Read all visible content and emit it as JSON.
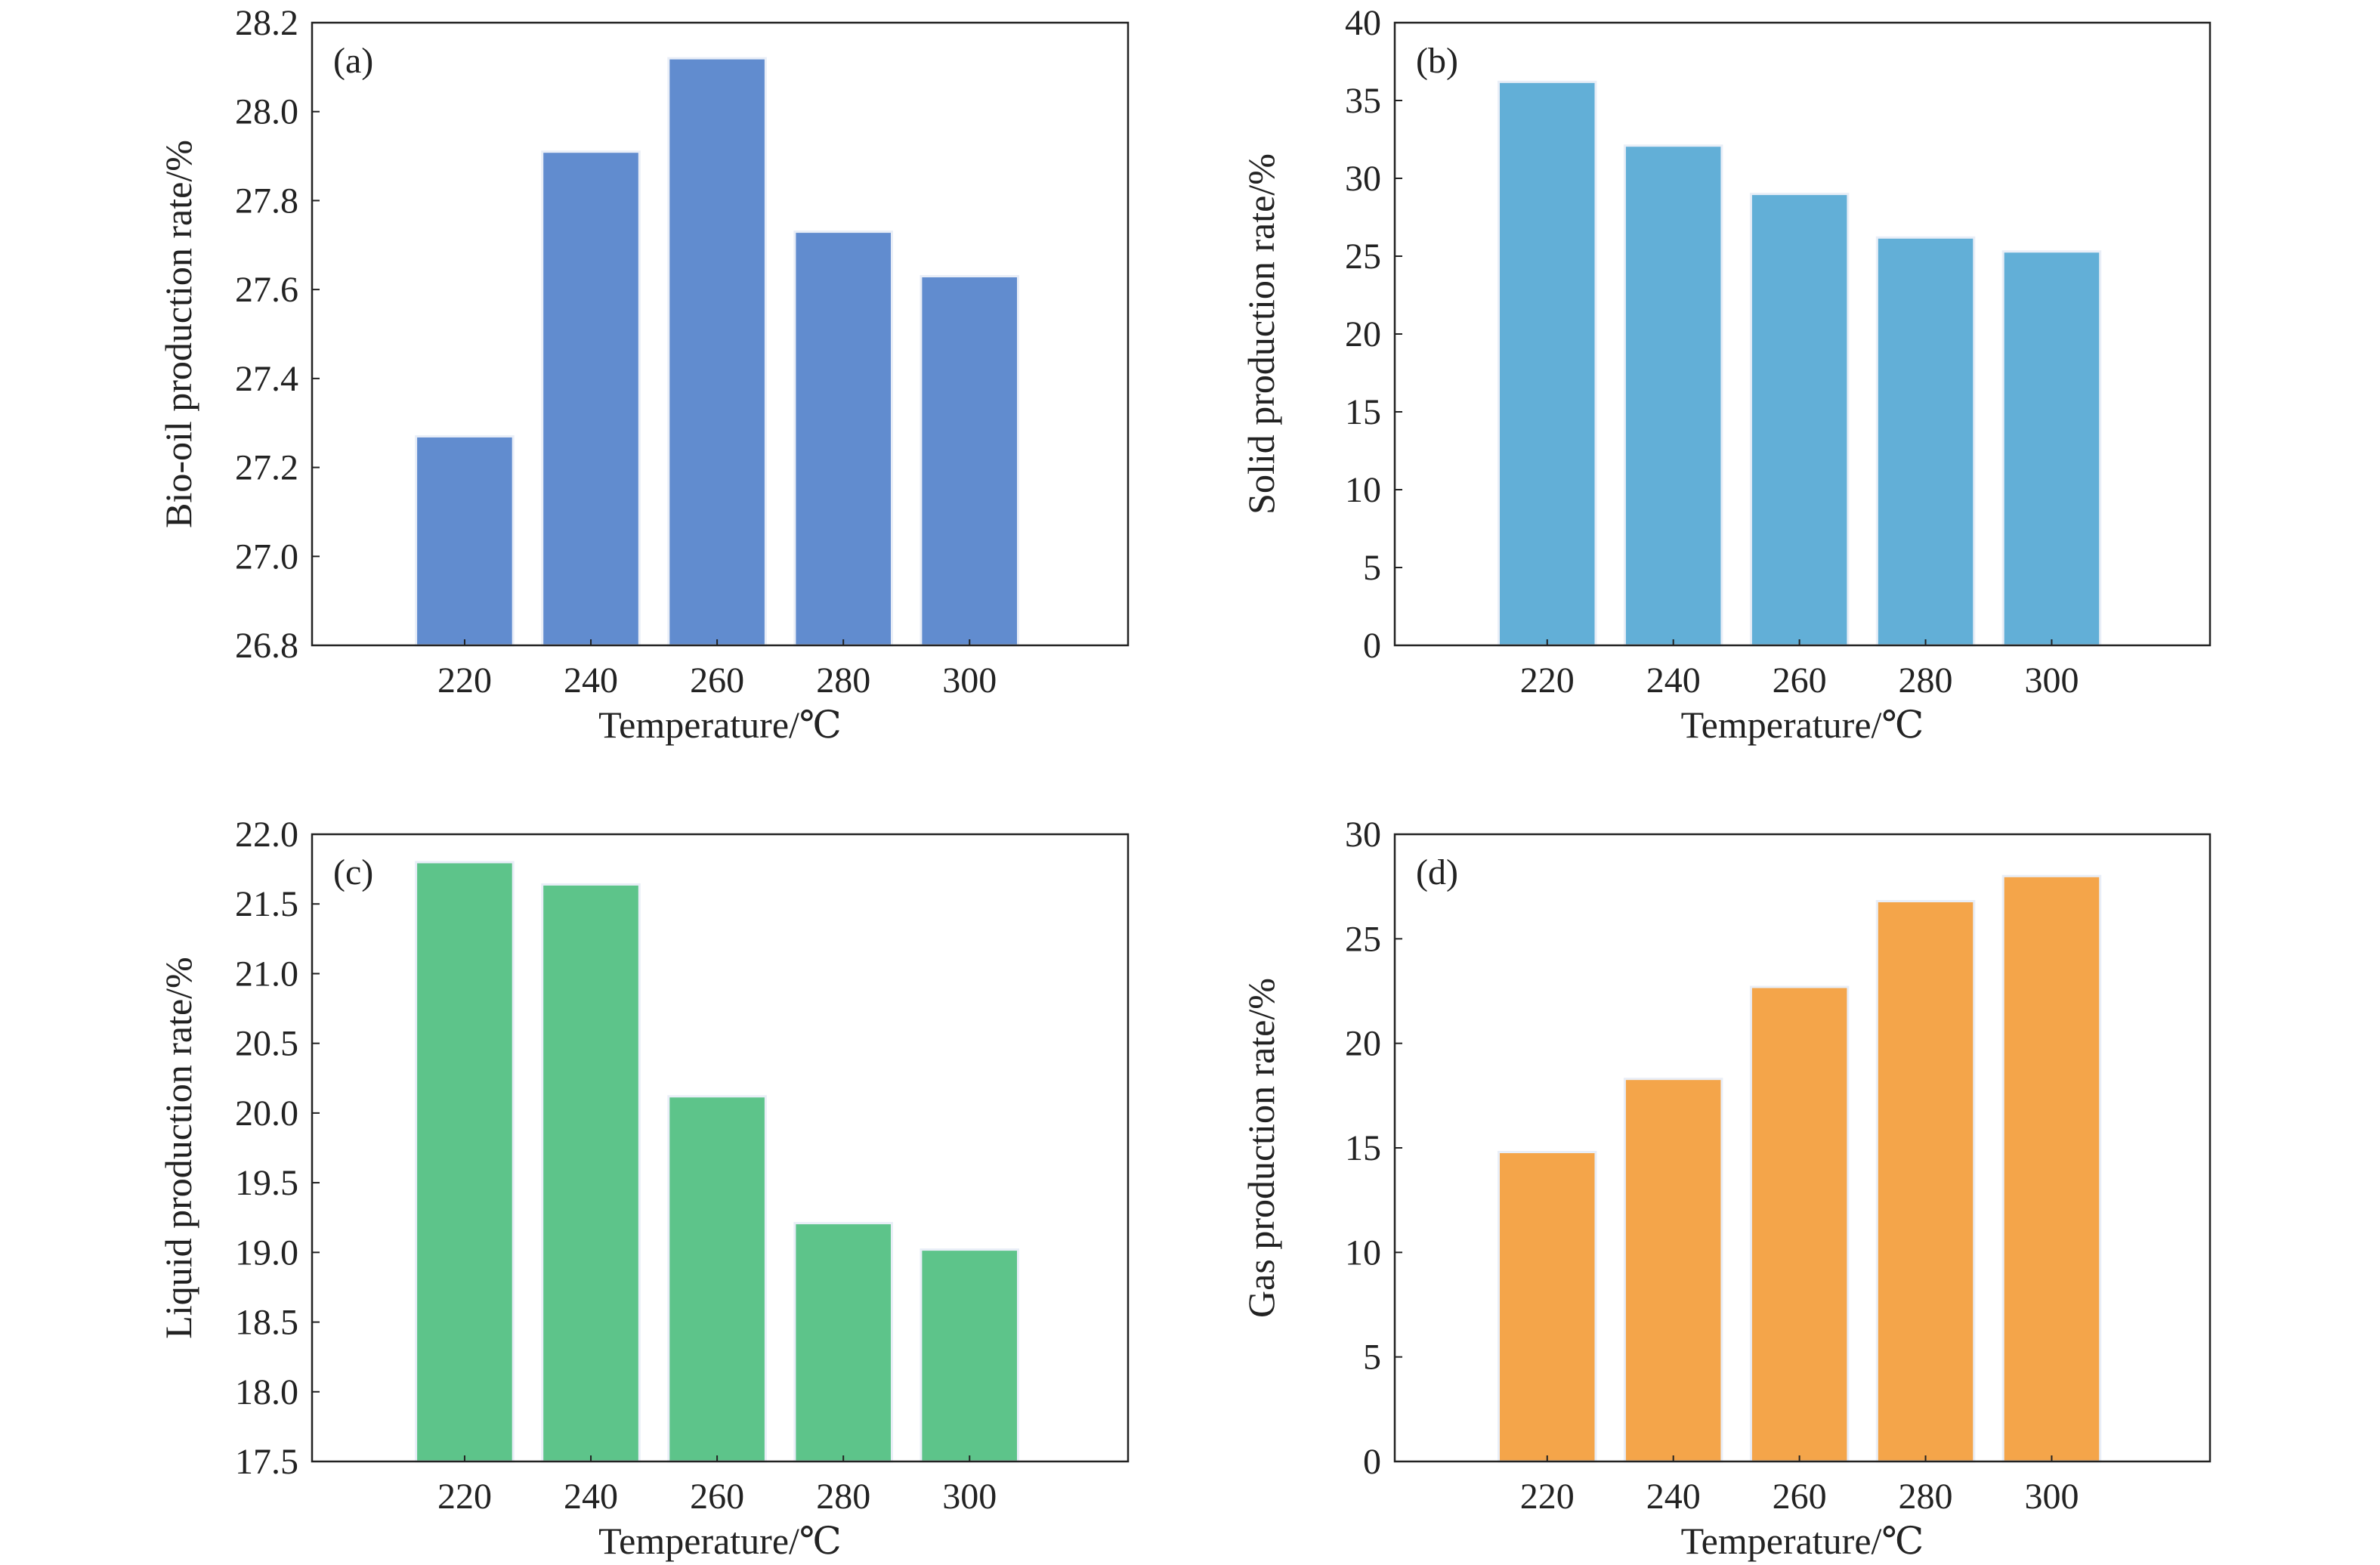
{
  "chart_data": [
    {
      "type": "bar",
      "panel_label": "(a)",
      "categories": [
        "220",
        "240",
        "260",
        "280",
        "300"
      ],
      "values": [
        27.27,
        27.91,
        28.12,
        27.73,
        27.63
      ],
      "xlabel": "Temperature/℃",
      "ylabel": "Bio-oil production rate/%",
      "ylim": [
        26.8,
        28.2
      ],
      "yticks": [
        "26.8",
        "27.0",
        "27.2",
        "27.4",
        "27.6",
        "27.8",
        "28.0",
        "28.2"
      ],
      "color": "#618ccf",
      "grid": false
    },
    {
      "type": "bar",
      "panel_label": "(b)",
      "categories": [
        "220",
        "240",
        "260",
        "280",
        "300"
      ],
      "values": [
        36.2,
        32.1,
        29.0,
        26.2,
        25.3
      ],
      "xlabel": "Temperature/℃",
      "ylabel": "Solid production rate/%",
      "ylim": [
        0,
        40
      ],
      "yticks": [
        "0",
        "5",
        "10",
        "15",
        "20",
        "25",
        "30",
        "35",
        "40"
      ],
      "color": "#62afd7",
      "grid": false
    },
    {
      "type": "bar",
      "panel_label": "(c)",
      "categories": [
        "220",
        "240",
        "260",
        "280",
        "300"
      ],
      "values": [
        21.8,
        21.64,
        20.12,
        19.21,
        19.02
      ],
      "xlabel": "Temperature/℃",
      "ylabel": "Liquid production rate/%",
      "ylim": [
        17.5,
        22.0
      ],
      "yticks": [
        "17.5",
        "18.0",
        "18.5",
        "19.0",
        "19.5",
        "20.0",
        "20.5",
        "21.0",
        "21.5",
        "22.0"
      ],
      "color": "#5dc48a",
      "grid": false
    },
    {
      "type": "bar",
      "panel_label": "(d)",
      "categories": [
        "220",
        "240",
        "260",
        "280",
        "300"
      ],
      "values": [
        14.8,
        18.3,
        22.7,
        26.8,
        28.0
      ],
      "xlabel": "Temperature/℃",
      "ylabel": "Gas production rate/%",
      "ylim": [
        0,
        30
      ],
      "yticks": [
        "0",
        "5",
        "10",
        "15",
        "20",
        "25",
        "30"
      ],
      "color": "#f4a54a",
      "grid": false
    }
  ]
}
